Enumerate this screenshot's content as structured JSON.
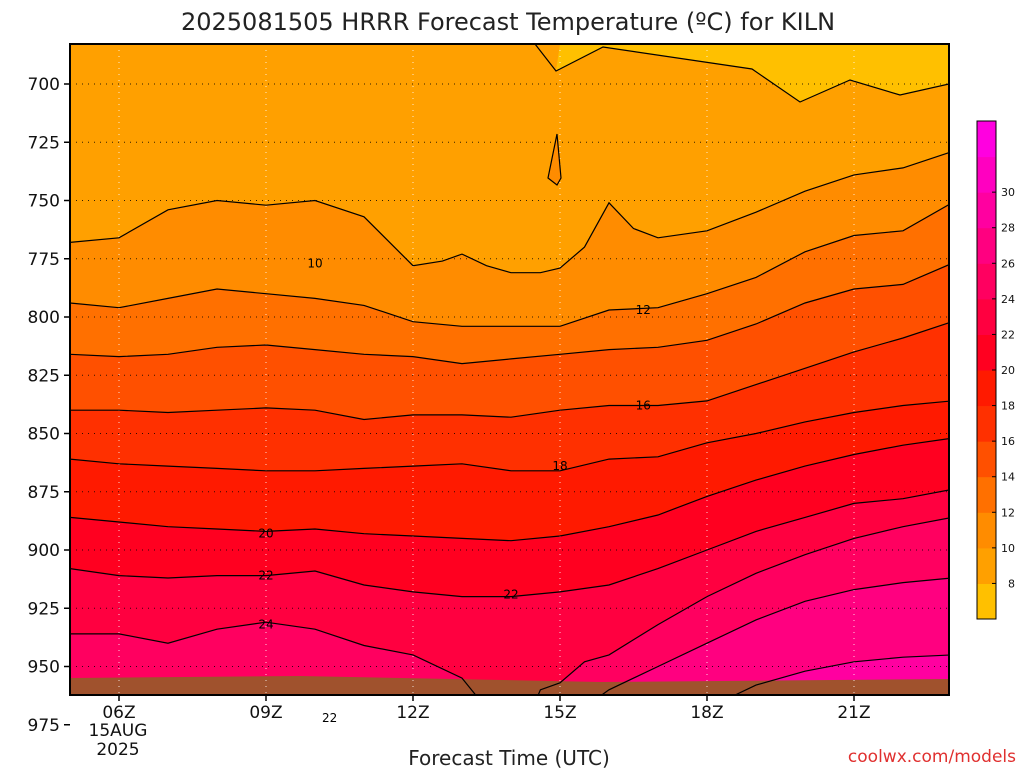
{
  "title": "2025081505 HRRR Forecast Temperature (ºC) for KILN",
  "xlabel": "Forecast Time (UTC)",
  "credit": "coolwx.com/models",
  "date_label": [
    "15AUG",
    "2025"
  ],
  "chart_data": {
    "type": "heatmap",
    "x": [
      "05Z",
      "06Z",
      "07Z",
      "08Z",
      "09Z",
      "10Z",
      "11Z",
      "12Z",
      "13Z",
      "14Z",
      "15Z",
      "16Z",
      "17Z",
      "18Z",
      "19Z",
      "20Z",
      "21Z",
      "22Z",
      "23Z"
    ],
    "x_ticks": [
      "06Z",
      "09Z",
      "12Z",
      "15Z",
      "18Z",
      "21Z"
    ],
    "y_ticks": [
      700,
      725,
      750,
      775,
      800,
      825,
      850,
      875,
      900,
      925,
      950,
      975
    ],
    "ylim": [
      975,
      690
    ],
    "grid": true,
    "contour_labels": [
      "10",
      "12",
      "16",
      "18",
      "20",
      "22",
      "22",
      "24",
      "22"
    ],
    "colorbar_ticks": [
      8,
      10,
      12,
      14,
      16,
      18,
      20,
      22,
      24,
      26,
      28,
      30
    ],
    "colors": {
      "levels": [
        "#FFC000",
        "#FFA000",
        "#FF8C00",
        "#FF7000",
        "#FF5000",
        "#FF3000",
        "#FF1A00",
        "#FF0020",
        "#FF0040",
        "#FF0060",
        "#FF0080",
        "#FF00A0",
        "#FF00C0",
        "#FF00E0"
      ],
      "ground": "#A0522D"
    },
    "contours": {
      "10": [
        [
          5,
          768
        ],
        [
          6,
          766
        ],
        [
          7,
          754
        ],
        [
          8,
          750
        ],
        [
          9,
          752
        ],
        [
          10,
          750
        ],
        [
          11,
          757
        ],
        [
          12,
          778
        ],
        [
          12.6,
          776
        ],
        [
          13,
          773
        ],
        [
          13.5,
          778
        ],
        [
          14,
          781
        ],
        [
          14.6,
          781
        ],
        [
          15,
          779
        ],
        [
          15.5,
          770
        ],
        [
          16,
          751
        ],
        [
          16.5,
          762
        ],
        [
          17,
          766
        ],
        [
          18,
          763
        ],
        [
          19,
          755
        ],
        [
          20,
          746
        ],
        [
          21,
          739
        ],
        [
          22,
          736
        ],
        [
          23,
          729
        ]
      ],
      "12": [
        [
          5,
          794
        ],
        [
          6,
          796
        ],
        [
          7,
          792
        ],
        [
          8,
          788
        ],
        [
          9,
          790
        ],
        [
          10,
          792
        ],
        [
          11,
          795
        ],
        [
          12,
          802
        ],
        [
          13,
          804
        ],
        [
          14,
          804
        ],
        [
          15,
          804
        ],
        [
          16,
          797
        ],
        [
          17,
          796
        ],
        [
          18,
          790
        ],
        [
          19,
          783
        ],
        [
          20,
          772
        ],
        [
          21,
          765
        ],
        [
          22,
          763
        ],
        [
          23,
          751
        ]
      ],
      "14": [
        [
          5,
          816
        ],
        [
          6,
          817
        ],
        [
          7,
          816
        ],
        [
          8,
          813
        ],
        [
          9,
          812
        ],
        [
          10,
          814
        ],
        [
          11,
          816
        ],
        [
          12,
          817
        ],
        [
          13,
          820
        ],
        [
          14,
          818
        ],
        [
          15,
          816
        ],
        [
          16,
          814
        ],
        [
          17,
          813
        ],
        [
          18,
          810
        ],
        [
          19,
          803
        ],
        [
          20,
          794
        ],
        [
          21,
          788
        ],
        [
          22,
          786
        ],
        [
          23,
          777
        ]
      ],
      "16": [
        [
          5,
          840
        ],
        [
          6,
          840
        ],
        [
          7,
          841
        ],
        [
          8,
          840
        ],
        [
          9,
          839
        ],
        [
          10,
          840
        ],
        [
          11,
          844
        ],
        [
          12,
          842
        ],
        [
          13,
          842
        ],
        [
          14,
          843
        ],
        [
          15,
          840
        ],
        [
          16,
          838
        ],
        [
          17,
          838
        ],
        [
          18,
          836
        ],
        [
          19,
          829
        ],
        [
          20,
          822
        ],
        [
          21,
          815
        ],
        [
          22,
          809
        ],
        [
          23,
          802
        ]
      ],
      "18": [
        [
          5,
          861
        ],
        [
          6,
          863
        ],
        [
          7,
          864
        ],
        [
          8,
          865
        ],
        [
          9,
          866
        ],
        [
          10,
          866
        ],
        [
          11,
          865
        ],
        [
          12,
          864
        ],
        [
          13,
          863
        ],
        [
          14,
          866
        ],
        [
          15,
          866
        ],
        [
          16,
          861
        ],
        [
          17,
          860
        ],
        [
          18,
          854
        ],
        [
          19,
          850
        ],
        [
          20,
          845
        ],
        [
          21,
          841
        ],
        [
          22,
          838
        ],
        [
          23,
          836
        ]
      ],
      "20": [
        [
          5,
          886
        ],
        [
          6,
          888
        ],
        [
          7,
          890
        ],
        [
          8,
          891
        ],
        [
          9,
          892
        ],
        [
          10,
          891
        ],
        [
          11,
          893
        ],
        [
          12,
          894
        ],
        [
          13,
          895
        ],
        [
          14,
          896
        ],
        [
          15,
          894
        ],
        [
          16,
          890
        ],
        [
          17,
          885
        ],
        [
          18,
          877
        ],
        [
          19,
          870
        ],
        [
          20,
          864
        ],
        [
          21,
          859
        ],
        [
          22,
          855
        ],
        [
          23,
          852
        ]
      ],
      "22": [
        [
          5,
          908
        ],
        [
          6,
          911
        ],
        [
          7,
          912
        ],
        [
          8,
          911
        ],
        [
          9,
          911
        ],
        [
          10,
          909
        ],
        [
          11,
          915
        ],
        [
          12,
          918
        ],
        [
          13,
          920
        ],
        [
          14,
          920
        ],
        [
          15,
          918
        ],
        [
          16,
          915
        ],
        [
          17,
          908
        ],
        [
          18,
          900
        ],
        [
          19,
          892
        ],
        [
          20,
          886
        ],
        [
          21,
          880
        ],
        [
          22,
          878
        ],
        [
          23,
          874
        ]
      ],
      "24": [
        [
          5,
          936
        ],
        [
          6,
          936
        ],
        [
          7,
          940
        ],
        [
          8,
          934
        ],
        [
          9,
          931
        ],
        [
          10,
          934
        ],
        [
          11,
          941
        ],
        [
          12,
          945
        ],
        [
          13,
          955
        ],
        [
          13.5,
          968
        ],
        [
          13.6,
          975
        ]
      ],
      "24b": [
        [
          14.3,
          975
        ],
        [
          14.6,
          960
        ],
        [
          15,
          957
        ],
        [
          15.5,
          948
        ],
        [
          16,
          945
        ],
        [
          17,
          932
        ],
        [
          18,
          920
        ],
        [
          19,
          910
        ],
        [
          20,
          902
        ],
        [
          21,
          895
        ],
        [
          22,
          890
        ],
        [
          23,
          886
        ]
      ],
      "26": [
        [
          15,
          975
        ],
        [
          16,
          960
        ],
        [
          17,
          950
        ],
        [
          18,
          940
        ],
        [
          19,
          930
        ],
        [
          20,
          922
        ],
        [
          21,
          917
        ],
        [
          22,
          914
        ],
        [
          23,
          912
        ]
      ],
      "28": [
        [
          17,
          975
        ],
        [
          18,
          968
        ],
        [
          19,
          958
        ],
        [
          20,
          952
        ],
        [
          21,
          948
        ],
        [
          22,
          946
        ],
        [
          23,
          945
        ]
      ],
      "30": [
        [
          19,
          975
        ],
        [
          20,
          972
        ],
        [
          21,
          969
        ],
        [
          22,
          965
        ],
        [
          23,
          963
        ]
      ],
      "22low": [
        [
          5,
          975
        ],
        [
          6,
          974
        ],
        [
          7,
          970
        ],
        [
          8,
          971
        ],
        [
          9,
          971
        ],
        [
          10,
          971
        ],
        [
          11,
          969
        ],
        [
          12,
          973
        ],
        [
          12.3,
          976
        ]
      ]
    }
  }
}
